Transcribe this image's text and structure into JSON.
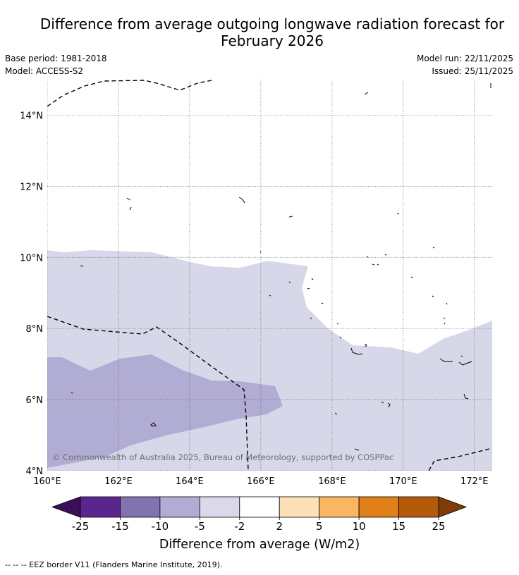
{
  "title": "Difference from average outgoing longwave radiation forecast for February 2026",
  "title_line1": "Difference from average outgoing longwave radiation forecast for",
  "title_line2": "February 2026",
  "header": {
    "base_period": "Base period: 1981-2018",
    "model": "Model: ACCESS-S2",
    "model_run": "Model run: 22/11/2025",
    "issued": "Issued: 25/11/2025"
  },
  "map": {
    "lon_range": [
      160,
      172.5
    ],
    "lat_range": [
      4,
      15
    ],
    "x_ticks": [
      "160°E",
      "162°E",
      "164°E",
      "166°E",
      "168°E",
      "170°E",
      "172°E"
    ],
    "y_ticks": [
      "4°N",
      "6°N",
      "8°N",
      "10°N",
      "12°N",
      "14°N"
    ],
    "copyright": "© Commonwealth of Australia 2025, Bureau of Meteorology, supported by COSPPac"
  },
  "colorbar": {
    "ticks": [
      "-25",
      "-15",
      "-10",
      "-5",
      "-2",
      "2",
      "5",
      "10",
      "15",
      "25"
    ],
    "colors": [
      "#5b2590",
      "#8073b0",
      "#b1acd3",
      "#d9d9eb",
      "#ffffff",
      "#fde0b5",
      "#fbb663",
      "#e17f18",
      "#b45a0b"
    ],
    "under_color": "#3a0f57",
    "over_color": "#7f3c0a",
    "label": "Difference from average (W/m2)"
  },
  "footnote": "--  --  -- EEZ border V11 (Flanders Marine Institute, 2019)."
}
